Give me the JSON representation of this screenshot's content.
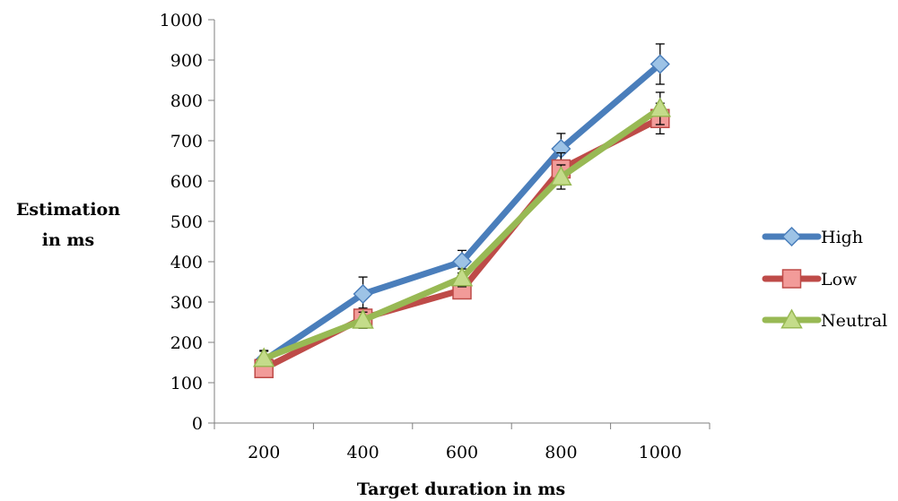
{
  "chart_data": {
    "type": "line",
    "title": "",
    "xlabel": "Target duration in ms",
    "ylabel_lines": [
      "Estimation",
      "in ms"
    ],
    "categories": [
      "200",
      "400",
      "600",
      "800",
      "1000"
    ],
    "yticks": [
      "0",
      "100",
      "200",
      "300",
      "400",
      "500",
      "600",
      "700",
      "800",
      "900",
      "1000"
    ],
    "ylim": [
      0,
      1000
    ],
    "grid": false,
    "legend_position": "right",
    "series": [
      {
        "name": "High",
        "values": [
          155,
          320,
          400,
          680,
          890
        ],
        "errors": [
          25,
          42,
          28,
          38,
          50
        ],
        "color": "#4a7ebb",
        "marker": "diamond",
        "marker_fill": "#9dc3e6"
      },
      {
        "name": "Low",
        "values": [
          135,
          260,
          330,
          630,
          755
        ],
        "errors": [
          20,
          25,
          20,
          40,
          38
        ],
        "color": "#be4b48",
        "marker": "square",
        "marker_fill": "#f29b99"
      },
      {
        "name": "Neutral",
        "values": [
          160,
          255,
          360,
          610,
          780
        ],
        "errors": [
          18,
          20,
          22,
          30,
          40
        ],
        "color": "#98b954",
        "marker": "triangle",
        "marker_fill": "#c4dc8a"
      }
    ]
  }
}
